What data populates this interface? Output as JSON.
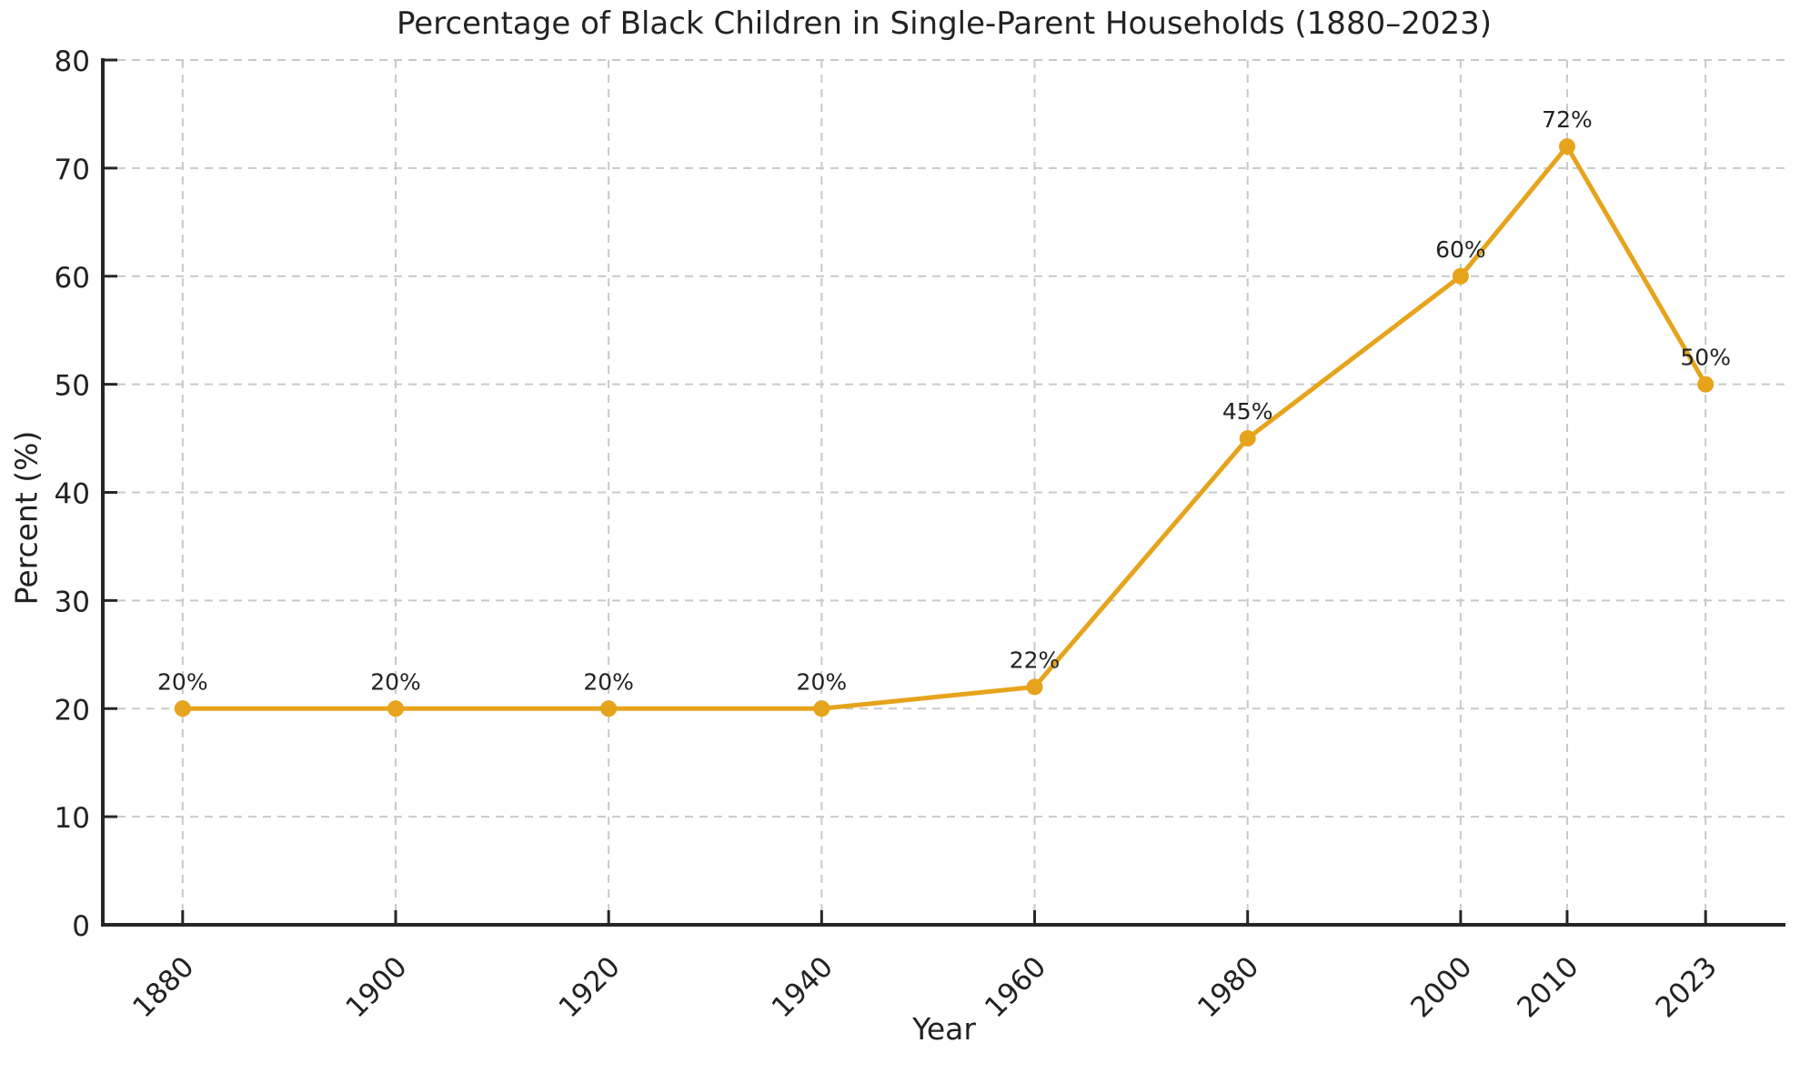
{
  "figure": {
    "title": "Percentage of Black Children in Single-Parent Households (1880–2023)",
    "xlabel": "Year",
    "ylabel": "Percent (%)"
  },
  "chart_data": {
    "type": "line",
    "title": "Percentage of Black Children in Single-Parent Households (1880–2023)",
    "xlabel": "Year",
    "ylabel": "Percent (%)",
    "x": [
      1880,
      1900,
      1920,
      1940,
      1960,
      1980,
      2000,
      2010,
      2023
    ],
    "values": [
      20,
      20,
      20,
      20,
      22,
      45,
      60,
      72,
      50
    ],
    "point_labels": [
      "20%",
      "20%",
      "20%",
      "20%",
      "22%",
      "45%",
      "60%",
      "72%",
      "50%"
    ],
    "xticks": [
      1880,
      1900,
      1920,
      1940,
      1960,
      1980,
      2000,
      2010,
      2023
    ],
    "xtick_labels": [
      "1880",
      "1900",
      "1920",
      "1940",
      "1960",
      "1980",
      "2000",
      "2010",
      "2023"
    ],
    "yticks": [
      0,
      10,
      20,
      30,
      40,
      50,
      60,
      70,
      80
    ],
    "ytick_labels": [
      "0",
      "10",
      "20",
      "30",
      "40",
      "50",
      "60",
      "70",
      "80"
    ],
    "xlim": [
      1872.5,
      2030.5
    ],
    "ylim": [
      0,
      80
    ],
    "grid": true,
    "grid_style": "dashed",
    "legend": false,
    "x_tick_rotation_deg": 45,
    "colors": {
      "line": "#E6A41C",
      "marker": "#E6A41C",
      "grid": "#c9c9c9",
      "axis": "#262626",
      "text": "#222222",
      "background": "#ffffff"
    }
  }
}
